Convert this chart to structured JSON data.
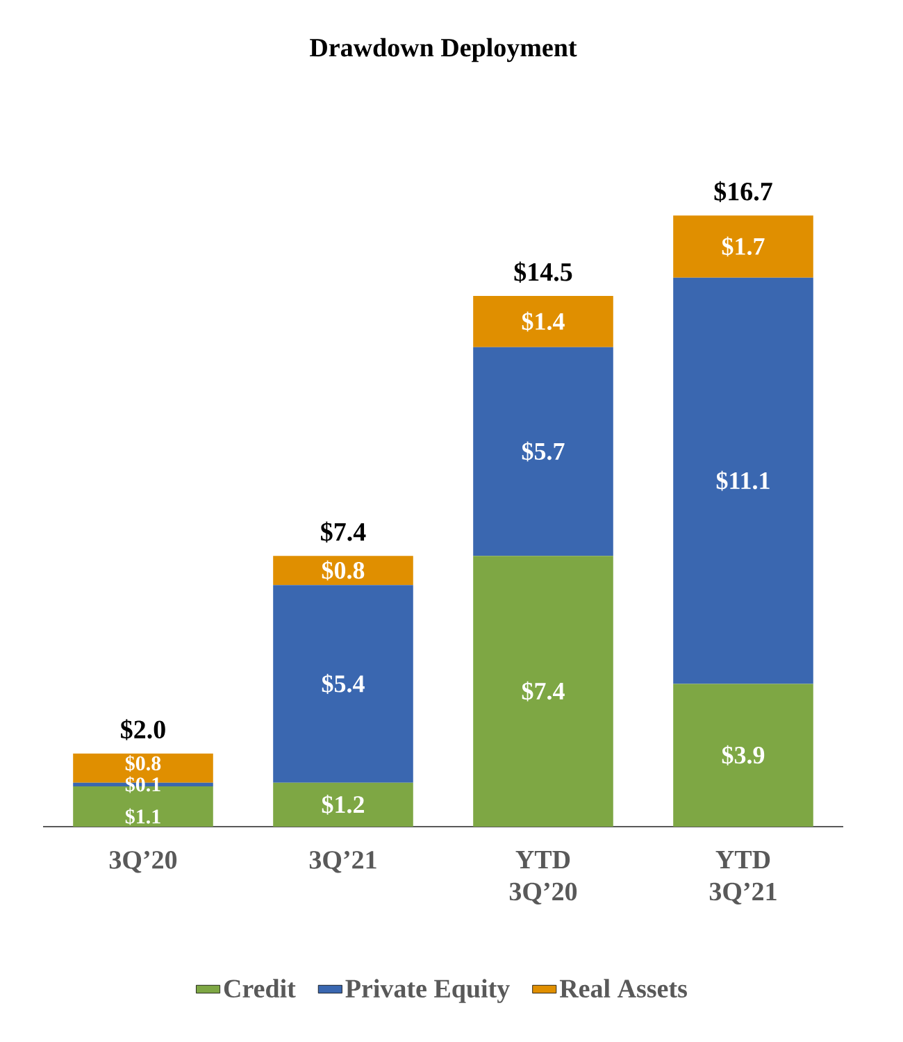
{
  "chart_data": {
    "type": "bar",
    "title": "Drawdown Deployment",
    "stacked": true,
    "legend": "bottom",
    "categories": [
      "3Q’20",
      "3Q’21",
      "YTD 3Q’20",
      "YTD 3Q’21"
    ],
    "series": [
      {
        "name": "Credit",
        "color": "#7ea744",
        "values": [
          1.1,
          1.2,
          7.4,
          3.9
        ],
        "value_labels": [
          "$1.1",
          "$1.2",
          "$7.4",
          "$3.9"
        ]
      },
      {
        "name": "Private Equity",
        "color": "#3a67b0",
        "values": [
          0.1,
          5.4,
          5.7,
          11.1
        ],
        "value_labels": [
          "$0.1",
          "$5.4",
          "$5.7",
          "$11.1"
        ]
      },
      {
        "name": "Real Assets",
        "color": "#e08f00",
        "values": [
          0.8,
          0.8,
          1.4,
          1.7
        ],
        "value_labels": [
          "$0.8",
          "$0.8",
          "$1.4",
          "$1.7"
        ]
      }
    ],
    "totals": [
      "$2.0",
      "$7.4",
      "$14.5",
      "$16.7"
    ]
  }
}
